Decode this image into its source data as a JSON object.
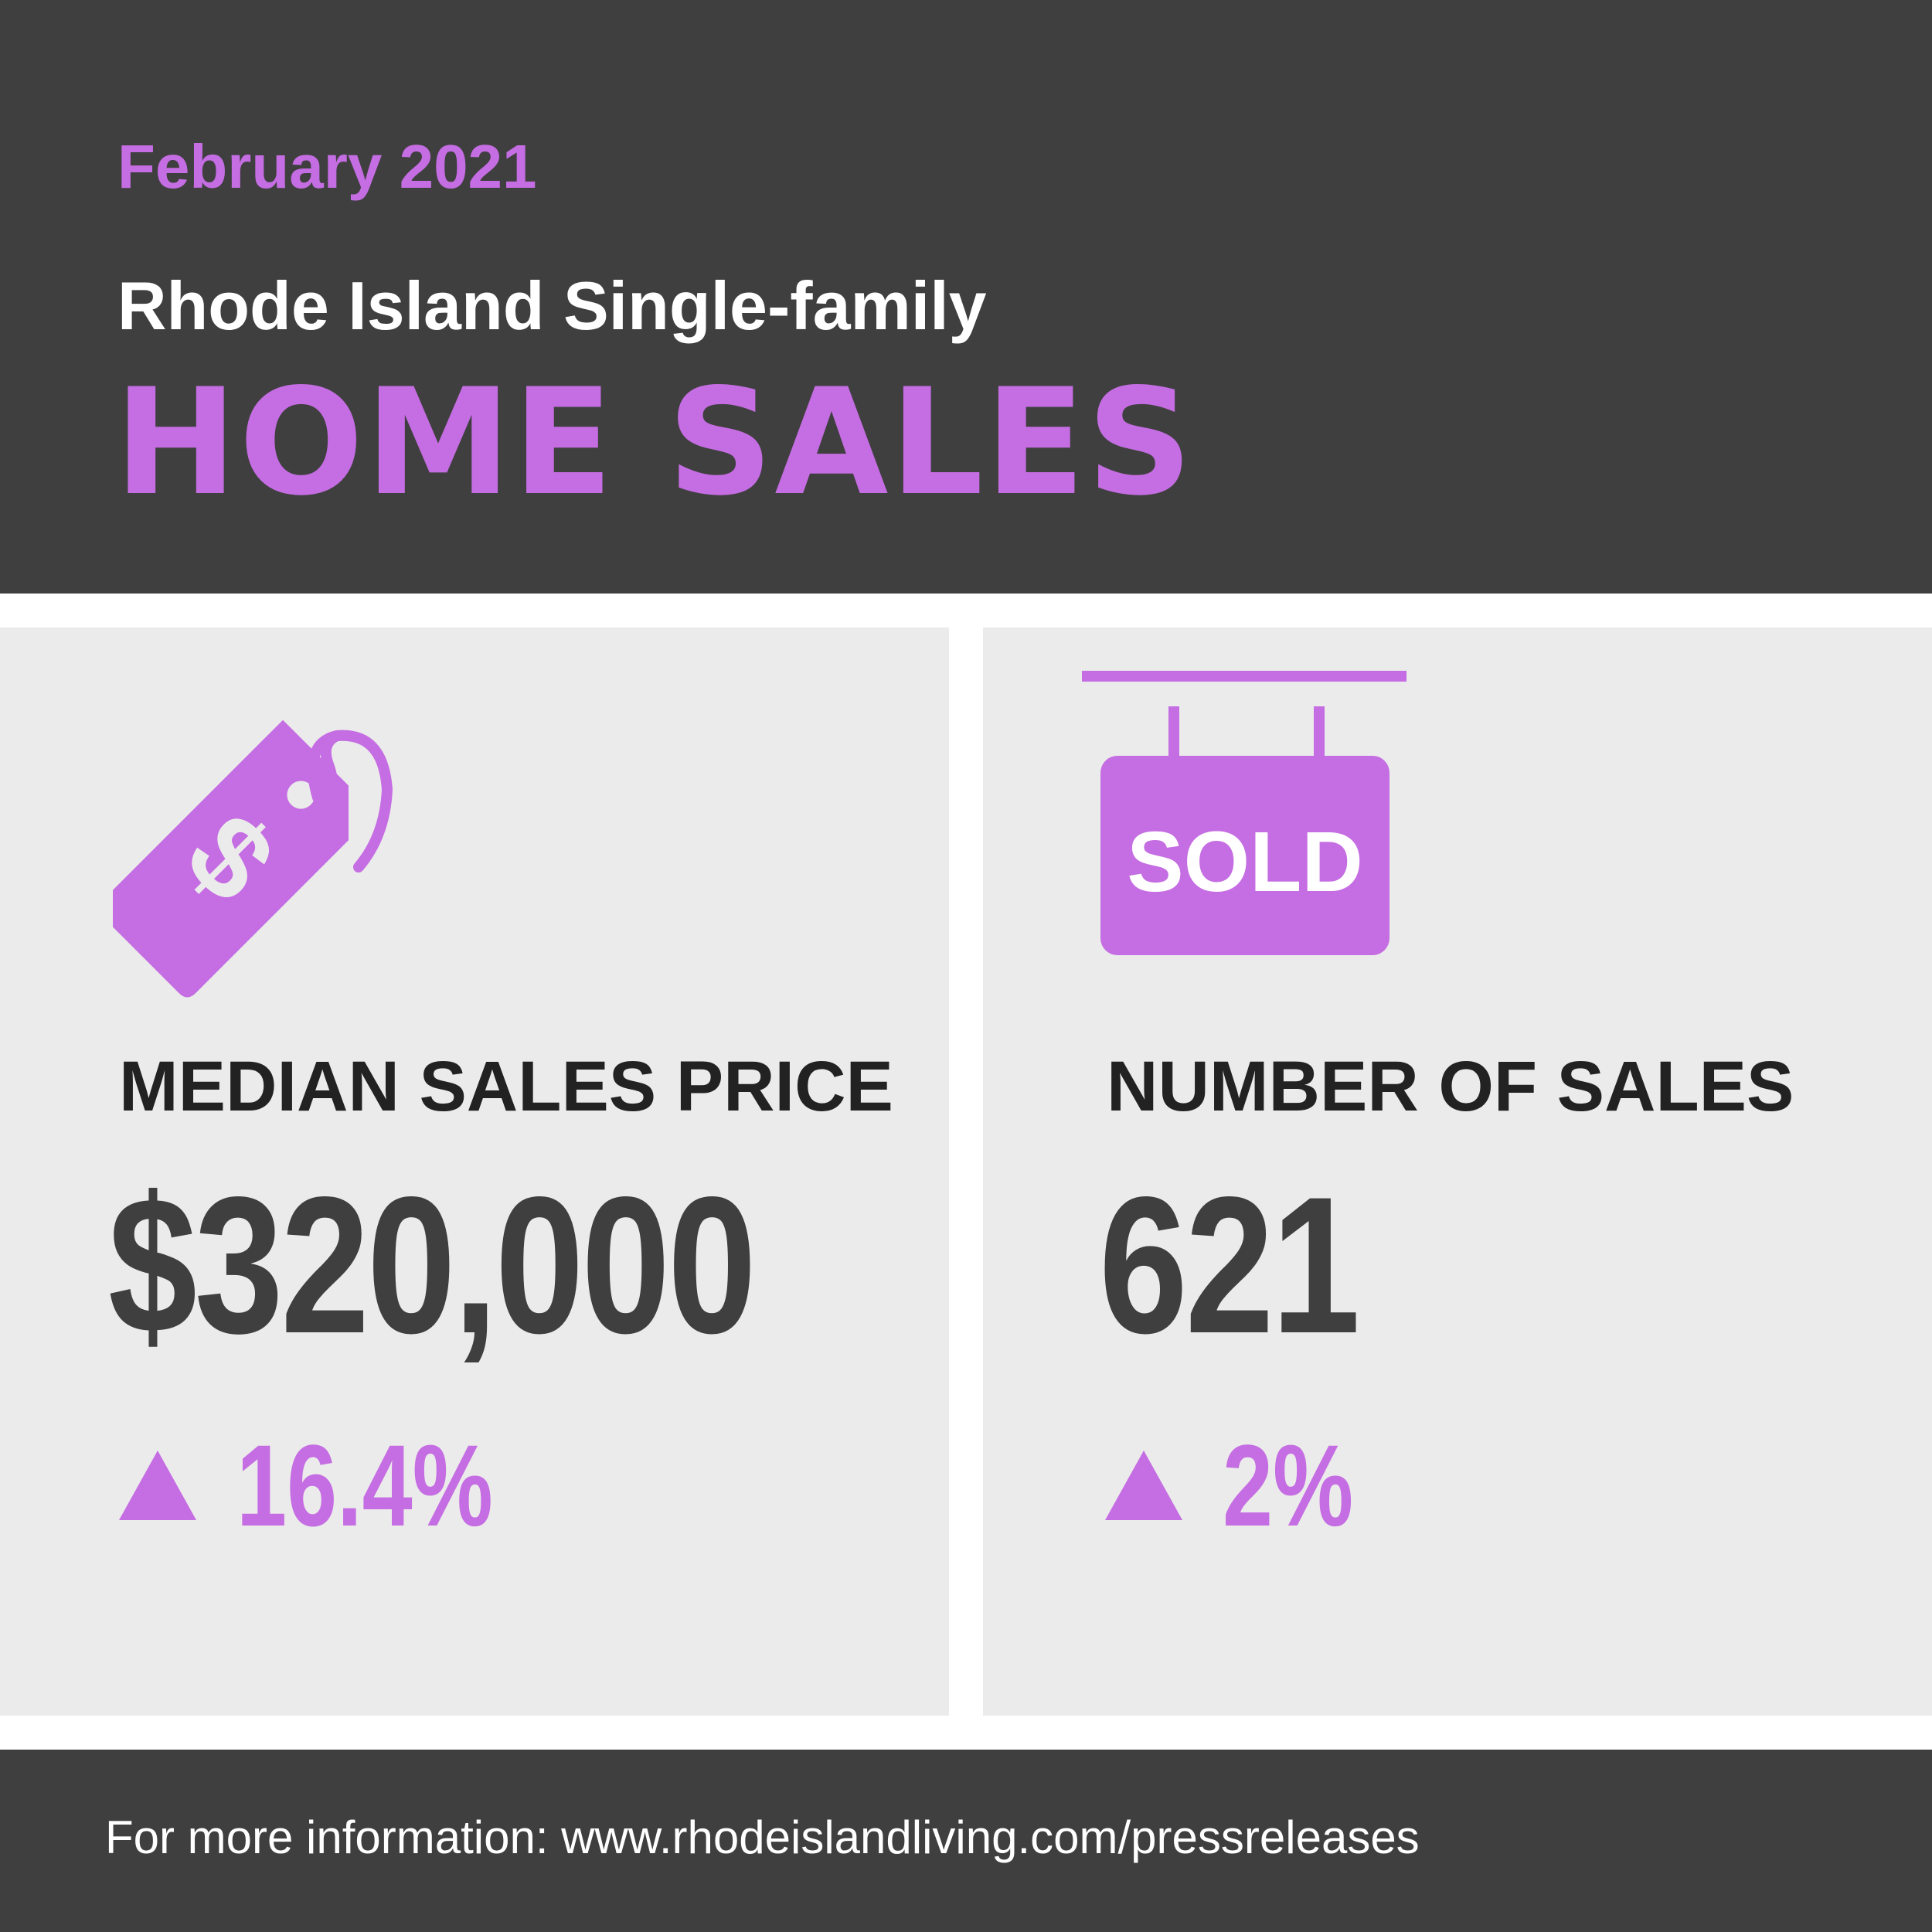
{
  "header": {
    "date": "February 2021",
    "subtitle": "Rhode Island Single-family",
    "title": "HOME SALES"
  },
  "metrics": [
    {
      "icon": "price-tag-icon",
      "label": "MEDIAN SALES PRICE",
      "value": "$320,000",
      "change_direction": "up",
      "change": "16.4%"
    },
    {
      "icon": "sold-sign-icon",
      "label": "NUMBER OF SALES",
      "value": "621",
      "change_direction": "up",
      "change": "2%",
      "sign_text": "SOLD"
    }
  ],
  "footer": {
    "text": "For more information: www.rhodeislandliving.com/pressreleases"
  },
  "colors": {
    "accent": "#c56de2",
    "dark": "#3f3f40",
    "panel": "#ebebeb",
    "text_dark": "#222222",
    "white": "#ffffff"
  }
}
